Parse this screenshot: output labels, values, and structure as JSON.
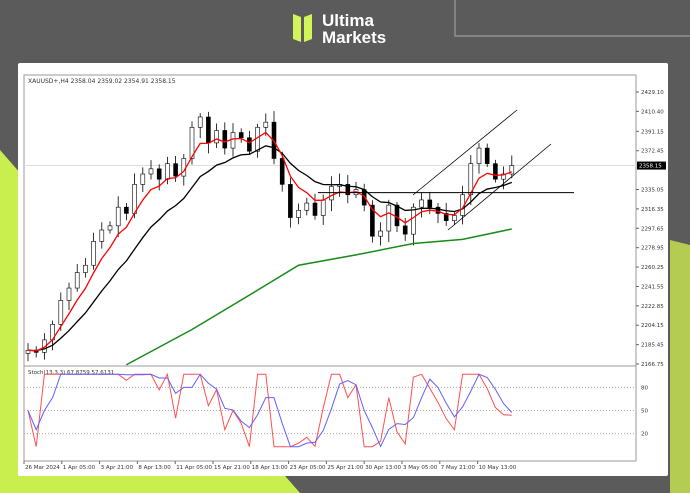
{
  "brand": {
    "name_line1": "Ultima",
    "name_line2": "Markets",
    "accent": "#d4f55a"
  },
  "chart_data": {
    "type": "candlestick",
    "header": "XAUUSD+,H4  2358.04 2359.02 2354.91 2358.15",
    "current_price": "2358.15",
    "y_ticks": [
      "2429.10",
      "2410.40",
      "2391.15",
      "2372.45",
      "2335.05",
      "2316.35",
      "2297.65",
      "2278.95",
      "2260.25",
      "2241.55",
      "2222.85",
      "2204.15",
      "2185.45",
      "2166.75"
    ],
    "ylim": [
      2166.75,
      2429.1
    ],
    "x_ticks": [
      "26 Mar 2024",
      "1 Apr 05:00",
      "3 Apr 21:00",
      "8 Apr 13:00",
      "11 Apr 05:00",
      "15 Apr 21:00",
      "18 Apr 13:00",
      "23 Apr 05:00",
      "25 Apr 21:00",
      "30 Apr 13:00",
      "3 May 05:00",
      "7 May 21:00",
      "10 May 13:00"
    ],
    "closes": [
      2180,
      2178,
      2190,
      2205,
      2228,
      2240,
      2255,
      2262,
      2285,
      2296,
      2300,
      2318,
      2312,
      2340,
      2350,
      2355,
      2345,
      2360,
      2348,
      2365,
      2395,
      2405,
      2380,
      2392,
      2375,
      2390,
      2385,
      2372,
      2395,
      2400,
      2365,
      2340,
      2308,
      2315,
      2322,
      2310,
      2325,
      2338,
      2340,
      2330,
      2335,
      2320,
      2290,
      2295,
      2320,
      2300,
      2292,
      2318,
      2325,
      2318,
      2312,
      2305,
      2310,
      2330,
      2360,
      2375,
      2360,
      2345,
      2350,
      2358.15
    ],
    "ma_slow": [
      [
        12,
        2166
      ],
      [
        20,
        2200
      ],
      [
        28,
        2238
      ],
      [
        33,
        2262
      ],
      [
        40,
        2272
      ],
      [
        47,
        2283
      ],
      [
        53,
        2287
      ],
      [
        59,
        2297
      ]
    ],
    "horizontal_level": 2332,
    "ma_colors": {
      "fast": "#ff0000",
      "mid": "#000000",
      "slow": "#1a8a1a"
    },
    "stochastic": {
      "label": "Stoch(13,3,3) 67.8759 57.6131",
      "levels": [
        "80",
        "50",
        "20"
      ],
      "main_color": "#6060ff",
      "signal_color": "#ff5050"
    }
  }
}
